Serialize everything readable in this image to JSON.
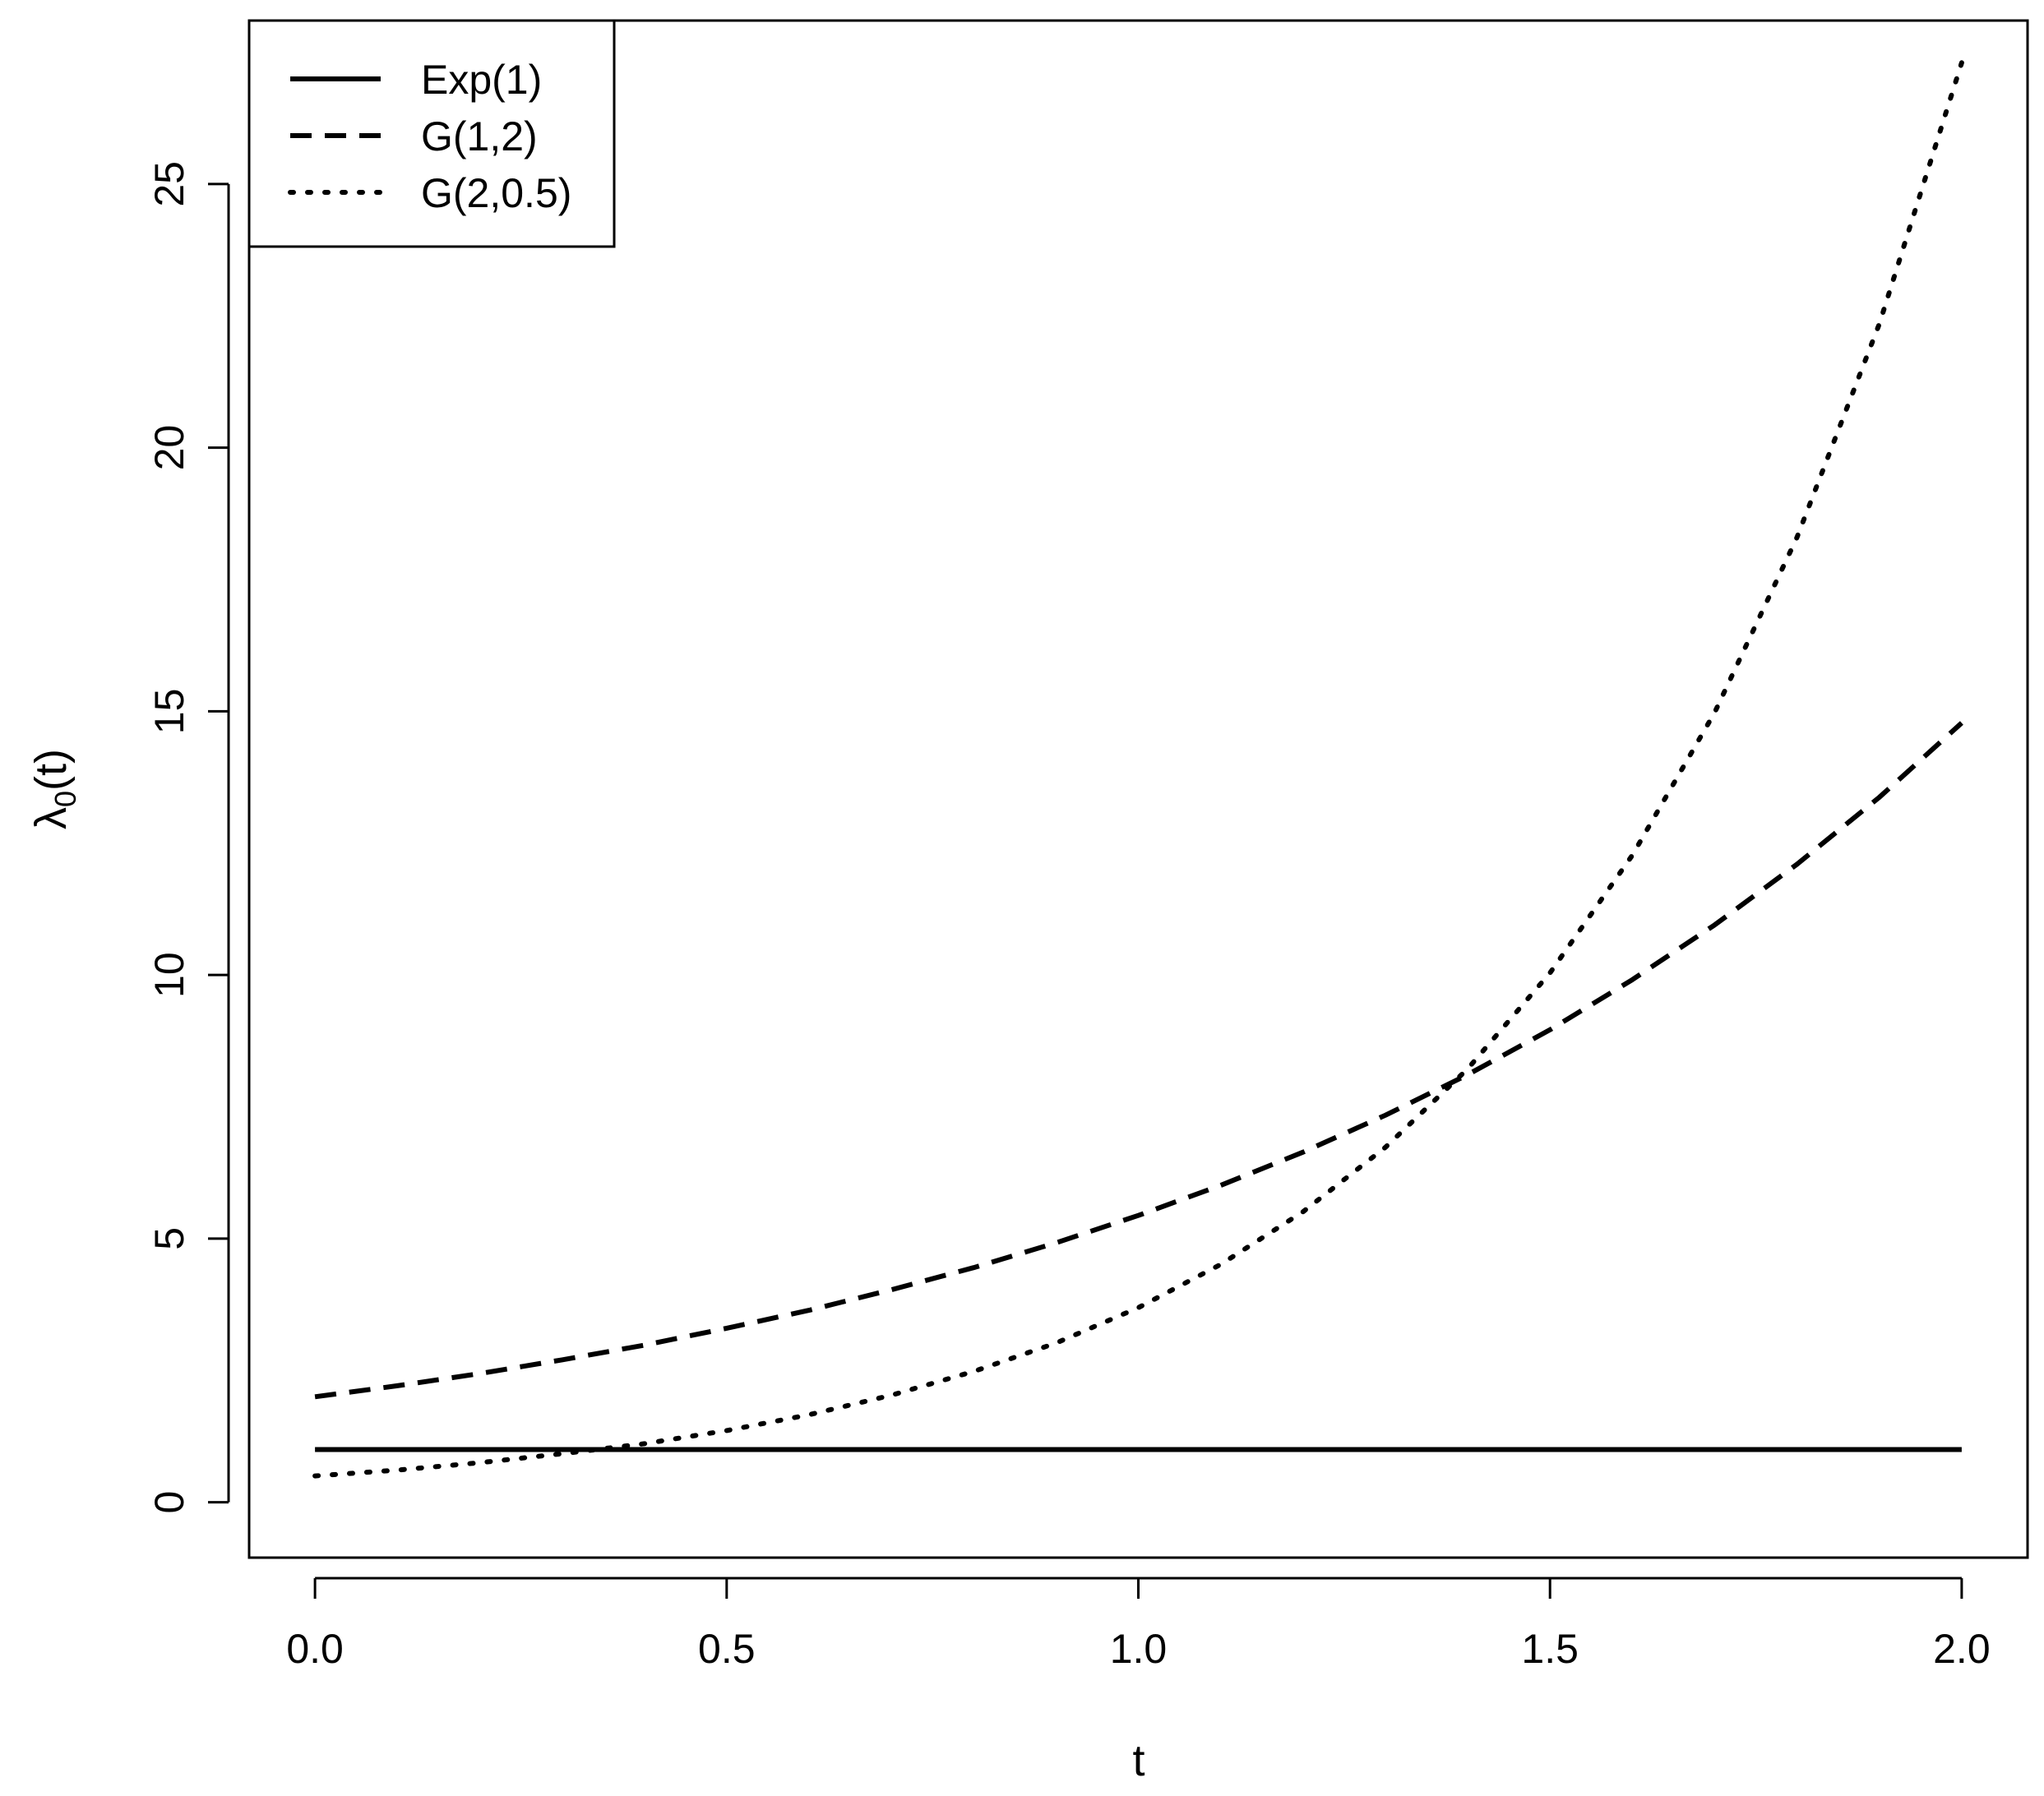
{
  "chart_data": {
    "type": "line",
    "title": "",
    "xlabel": "t",
    "ylabel": "λ0(t)",
    "ylabel_parts": {
      "main": "λ",
      "sub": "0",
      "arg": "(t)"
    },
    "xlim": [
      -0.08,
      2.08
    ],
    "ylim": [
      -1.05,
      28.1
    ],
    "xticks": [
      0.0,
      0.5,
      1.0,
      1.5,
      2.0
    ],
    "xtick_labels": [
      "0.0",
      "0.5",
      "1.0",
      "1.5",
      "2.0"
    ],
    "yticks": [
      0,
      5,
      10,
      15,
      20,
      25
    ],
    "ytick_labels": [
      "0",
      "5",
      "10",
      "15",
      "20",
      "25"
    ],
    "grid": false,
    "legend_position": "top-left",
    "series": [
      {
        "name": "Exp(1)",
        "style": "solid",
        "color": "#000000",
        "x": [
          0.0,
          2.0
        ],
        "y": [
          1.0,
          1.0
        ]
      },
      {
        "name": "G(1,2)",
        "style": "dashed",
        "color": "#000000",
        "x": [
          0.0,
          0.1,
          0.2,
          0.3,
          0.4,
          0.5,
          0.6,
          0.7,
          0.8,
          0.9,
          1.0,
          1.1,
          1.2,
          1.3,
          1.4,
          1.5,
          1.6,
          1.7,
          1.8,
          1.9,
          2.0
        ],
        "y": [
          2.0,
          2.21,
          2.44,
          2.7,
          2.98,
          3.3,
          3.64,
          4.03,
          4.45,
          4.92,
          5.44,
          6.01,
          6.64,
          7.34,
          8.11,
          8.96,
          9.91,
          10.95,
          12.1,
          13.37,
          14.78
        ]
      },
      {
        "name": "G(2,0.5)",
        "style": "dotted",
        "color": "#000000",
        "x": [
          0.0,
          0.1,
          0.2,
          0.3,
          0.4,
          0.5,
          0.6,
          0.7,
          0.8,
          0.9,
          1.0,
          1.1,
          1.2,
          1.3,
          1.4,
          1.5,
          1.6,
          1.7,
          1.8,
          1.9,
          2.0
        ],
        "y": [
          0.5,
          0.61,
          0.75,
          0.92,
          1.11,
          1.36,
          1.66,
          2.03,
          2.48,
          3.02,
          3.69,
          4.51,
          5.51,
          6.73,
          8.22,
          10.04,
          12.27,
          14.98,
          18.3,
          22.35,
          27.3
        ]
      }
    ]
  }
}
